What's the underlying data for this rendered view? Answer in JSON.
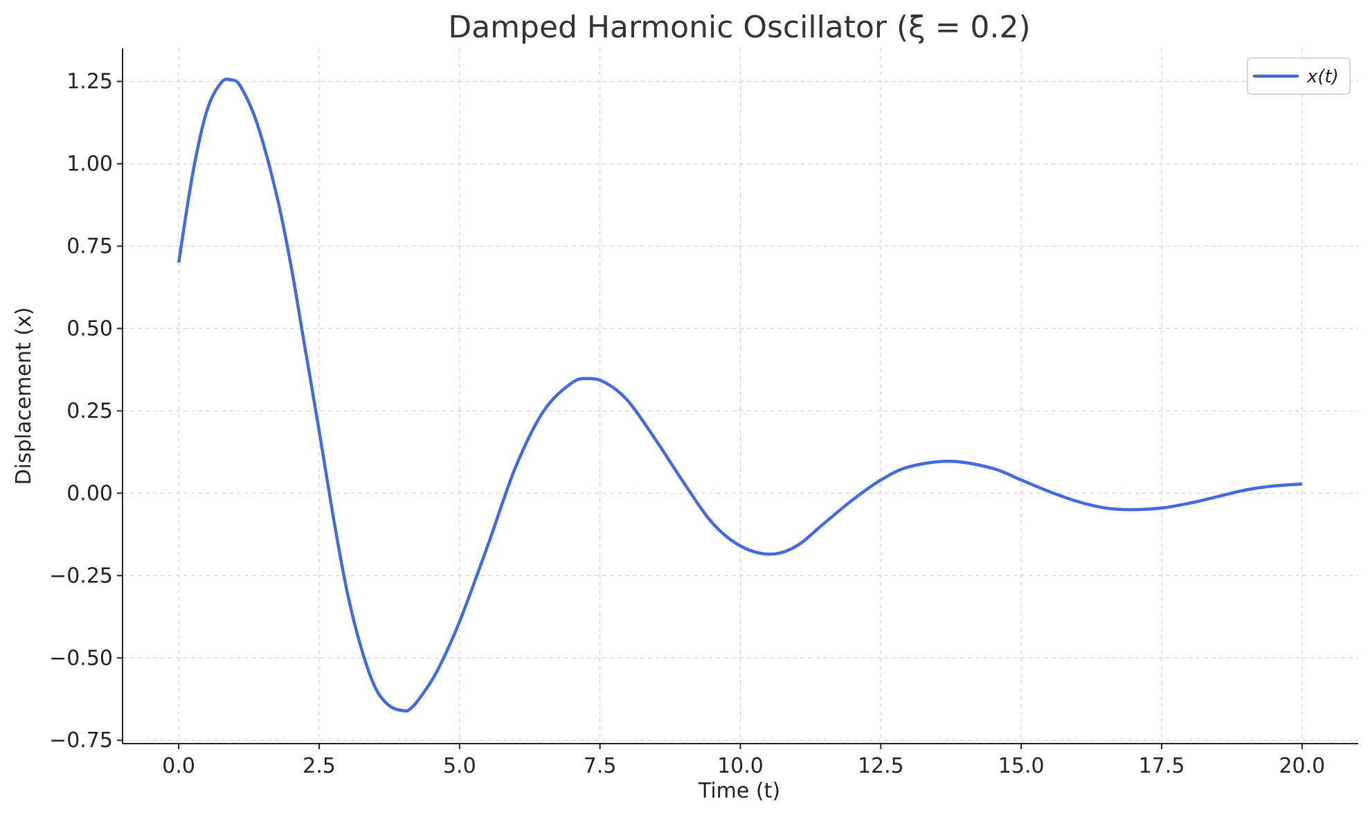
{
  "chart_data": {
    "type": "line",
    "title": "Damped Harmonic Oscillator (ξ = 0.2)",
    "xlabel": "Time (t)",
    "ylabel": "Displacement (x)",
    "xlim": [
      -1.0,
      21.0
    ],
    "ylim": [
      -0.76,
      1.35
    ],
    "x_ticks": [
      0.0,
      2.5,
      5.0,
      7.5,
      10.0,
      12.5,
      15.0,
      17.5,
      20.0
    ],
    "x_tick_labels": [
      "0.0",
      "2.5",
      "5.0",
      "7.5",
      "10.0",
      "12.5",
      "15.0",
      "17.5",
      "20.0"
    ],
    "y_ticks": [
      -0.75,
      -0.5,
      -0.25,
      0.0,
      0.25,
      0.5,
      0.75,
      1.0,
      1.25
    ],
    "y_tick_labels": [
      "−0.75",
      "−0.50",
      "−0.25",
      "0.00",
      "0.25",
      "0.50",
      "0.75",
      "1.00",
      "1.25"
    ],
    "grid": true,
    "legend_position": "top-right",
    "series": [
      {
        "name": "x(t)",
        "color": "#4169e1",
        "x": [
          0.0,
          0.25,
          0.5,
          0.75,
          0.92,
          1.1,
          1.4,
          1.75,
          2.0,
          2.25,
          2.5,
          2.75,
          3.0,
          3.25,
          3.5,
          3.75,
          4.0,
          4.12,
          4.3,
          4.6,
          5.0,
          5.5,
          6.0,
          6.5,
          7.0,
          7.3,
          7.6,
          8.0,
          8.5,
          9.0,
          9.5,
          10.0,
          10.53,
          11.0,
          11.5,
          12.0,
          12.5,
          13.0,
          13.75,
          14.5,
          15.0,
          15.5,
          16.0,
          16.5,
          16.95,
          17.5,
          18.0,
          18.5,
          19.0,
          19.5,
          20.0
        ],
        "values": [
          0.7,
          0.97,
          1.16,
          1.245,
          1.255,
          1.235,
          1.12,
          0.9,
          0.69,
          0.44,
          0.19,
          -0.07,
          -0.3,
          -0.47,
          -0.59,
          -0.645,
          -0.66,
          -0.655,
          -0.62,
          -0.54,
          -0.39,
          -0.16,
          0.08,
          0.25,
          0.335,
          0.348,
          0.335,
          0.28,
          0.16,
          0.03,
          -0.09,
          -0.16,
          -0.185,
          -0.16,
          -0.09,
          -0.02,
          0.04,
          0.08,
          0.097,
          0.075,
          0.04,
          0.005,
          -0.025,
          -0.045,
          -0.05,
          -0.045,
          -0.03,
          -0.01,
          0.01,
          0.022,
          0.028
        ]
      }
    ]
  }
}
